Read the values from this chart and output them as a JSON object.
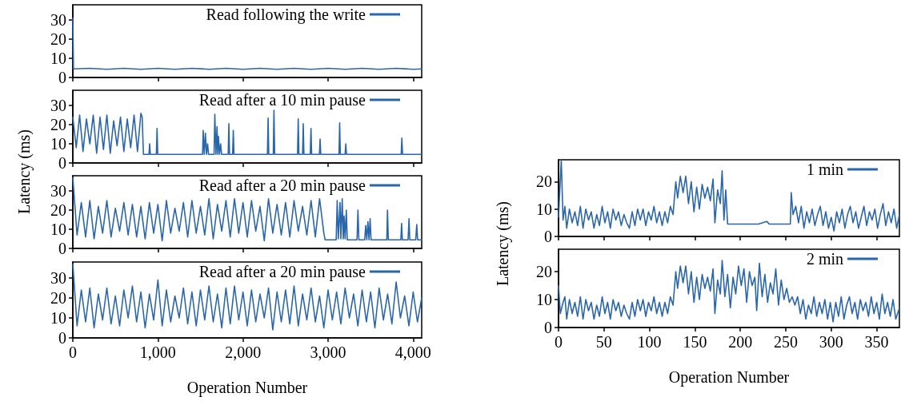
{
  "chart_data": [
    {
      "type": "line",
      "xlim": [
        0,
        4100
      ],
      "xticks": [
        0,
        1000,
        2000,
        3000,
        4000
      ],
      "ylim": [
        0,
        38
      ],
      "yticks": [
        0,
        10,
        20,
        30
      ],
      "tick_labels": "y",
      "grid": false,
      "legend": "top right",
      "marker": "none",
      "line_style": "solid",
      "x": [
        0,
        8,
        200,
        400,
        600,
        800,
        1000,
        1200,
        1400,
        1600,
        1800,
        2000,
        2200,
        2400,
        2600,
        2800,
        3000,
        3200,
        3400,
        3600,
        3800,
        4000,
        4100
      ],
      "series": [
        {
          "name": "Read following the write",
          "color": "#2a66ac",
          "values": [
            31,
            4.5,
            4.8,
            4.3,
            4.8,
            4.3,
            4.8,
            4.3,
            4.8,
            4.3,
            4.8,
            4.3,
            4.8,
            4.3,
            4.8,
            4.3,
            4.8,
            4.3,
            4.8,
            4.3,
            4.8,
            4.3,
            4.5
          ]
        }
      ]
    },
    {
      "type": "line",
      "ylabel": "Latency (ms)",
      "xlim": [
        0,
        4100
      ],
      "xticks": [
        0,
        1000,
        2000,
        3000,
        4000
      ],
      "ylim": [
        0,
        38
      ],
      "yticks": [
        0,
        10,
        20,
        30
      ],
      "tick_labels": "y",
      "grid": false,
      "legend": "top right",
      "marker": "none",
      "line_style": "solid",
      "x": [
        0,
        40,
        80,
        120,
        160,
        200,
        240,
        280,
        320,
        360,
        400,
        440,
        480,
        520,
        560,
        600,
        640,
        680,
        720,
        760,
        800,
        815,
        830,
        895,
        903,
        911,
        982,
        990,
        998,
        1525,
        1532,
        1545,
        1558,
        1571,
        1584,
        1595,
        1660,
        1669,
        1682,
        1695,
        1703,
        1711,
        1724,
        1737,
        1748,
        1826,
        1834,
        1842,
        1878,
        1886,
        1894,
        2287,
        2295,
        2303,
        2356,
        2364,
        2372,
        2641,
        2649,
        2657,
        2700,
        2708,
        2716,
        2791,
        2799,
        2807,
        2898,
        2906,
        2914,
        3128,
        3136,
        3144,
        3200,
        3208,
        3216,
        3859,
        3867,
        3875,
        4100
      ],
      "series": [
        {
          "name": "Read after a 10 min pause",
          "color": "#2a66ac",
          "values": [
            24,
            8,
            25,
            6,
            23,
            10,
            25,
            5,
            24,
            7,
            25,
            5,
            22,
            9,
            24,
            6,
            23,
            8,
            25,
            6,
            26,
            24,
            4.5,
            4.5,
            10,
            4.5,
            4.5,
            18,
            4.5,
            4.5,
            17,
            4.5,
            15.5,
            4.5,
            10,
            4.5,
            4.5,
            25.5,
            4.5,
            19,
            4.5,
            14,
            4.5,
            10,
            4.5,
            4.5,
            20.5,
            4.5,
            4.5,
            17,
            4.5,
            4.5,
            23.5,
            4.5,
            4.5,
            27.5,
            4.5,
            4.5,
            23,
            4.5,
            4.5,
            20.5,
            4.5,
            4.5,
            18,
            4.5,
            4.5,
            12.5,
            4.5,
            4.5,
            21,
            4.5,
            4.5,
            10,
            4.5,
            4.5,
            13,
            4.5,
            4.5
          ]
        }
      ]
    },
    {
      "type": "line",
      "xlim": [
        0,
        4100
      ],
      "xticks": [
        0,
        1000,
        2000,
        3000,
        4000
      ],
      "ylim": [
        0,
        38
      ],
      "yticks": [
        0,
        10,
        20,
        30
      ],
      "tick_labels": "y",
      "grid": false,
      "legend": "top right",
      "marker": "none",
      "line_style": "solid",
      "x": [
        0,
        50,
        100,
        150,
        200,
        250,
        300,
        350,
        400,
        450,
        500,
        550,
        600,
        650,
        700,
        750,
        800,
        850,
        900,
        950,
        1000,
        1050,
        1100,
        1150,
        1200,
        1250,
        1300,
        1350,
        1400,
        1450,
        1500,
        1550,
        1600,
        1650,
        1700,
        1750,
        1800,
        1850,
        1900,
        1950,
        2000,
        2050,
        2100,
        2150,
        2200,
        2250,
        2300,
        2350,
        2400,
        2450,
        2500,
        2550,
        2600,
        2650,
        2700,
        2750,
        2800,
        2850,
        2900,
        2950,
        2965,
        3095,
        3107,
        3120,
        3140,
        3150,
        3166,
        3178,
        3188,
        3200,
        3214,
        3225,
        3340,
        3351,
        3362,
        3430,
        3442,
        3455,
        3468,
        3481,
        3494,
        3505,
        3690,
        3698,
        3708,
        3855,
        3864,
        3873,
        3940,
        3951,
        3960,
        4030,
        4042,
        4052,
        4100
      ],
      "series": [
        {
          "name": "Read after a 20 min pause",
          "color": "#2a66ac",
          "values": [
            37,
            7,
            24,
            6,
            25,
            5,
            22,
            8,
            25,
            6,
            21,
            9,
            24,
            7,
            23,
            6,
            22,
            5,
            24,
            8,
            23,
            4,
            25,
            8,
            21,
            9,
            24,
            6,
            25,
            8,
            22,
            7,
            26,
            5,
            23,
            9,
            25,
            6,
            26,
            8,
            24,
            6,
            25,
            9,
            22,
            4,
            26,
            8,
            23,
            7,
            24,
            6,
            25,
            9,
            22,
            7,
            25,
            6,
            26,
            8,
            4.5,
            4.5,
            25,
            5,
            24,
            5,
            26,
            5,
            17,
            5,
            20,
            4.5,
            4.5,
            20,
            4.5,
            4.5,
            12,
            4.5,
            14,
            4.5,
            15.5,
            4.5,
            4.5,
            20,
            4.5,
            4.5,
            13,
            4.5,
            4.5,
            15.5,
            4.5,
            4.5,
            12.5,
            4.5,
            4.5
          ]
        }
      ]
    },
    {
      "type": "line",
      "xlabel": "Operation Number",
      "xlim": [
        0,
        4100
      ],
      "xticks": [
        0,
        {
          "value": 1000,
          "label": "1,000"
        },
        {
          "value": 2000,
          "label": "2,000"
        },
        {
          "value": 3000,
          "label": "3,000"
        },
        {
          "value": 4000,
          "label": "4,000"
        }
      ],
      "ylim": [
        0,
        38
      ],
      "yticks": [
        0,
        10,
        20,
        30
      ],
      "grid": false,
      "legend": "top right",
      "marker": "none",
      "line_style": "solid",
      "x": [
        0,
        50,
        100,
        150,
        200,
        250,
        300,
        350,
        400,
        450,
        500,
        550,
        600,
        650,
        700,
        750,
        800,
        850,
        900,
        950,
        1000,
        1050,
        1100,
        1150,
        1200,
        1250,
        1300,
        1350,
        1400,
        1450,
        1500,
        1550,
        1600,
        1650,
        1700,
        1750,
        1800,
        1850,
        1900,
        1950,
        2000,
        2050,
        2100,
        2150,
        2200,
        2250,
        2300,
        2350,
        2400,
        2450,
        2500,
        2550,
        2600,
        2650,
        2700,
        2750,
        2800,
        2850,
        2900,
        2950,
        3000,
        3050,
        3100,
        3150,
        3200,
        3250,
        3300,
        3350,
        3400,
        3450,
        3500,
        3550,
        3600,
        3650,
        3700,
        3750,
        3800,
        3850,
        3900,
        3950,
        4000,
        4050,
        4100
      ],
      "series": [
        {
          "name": "Read after a 20 min pause",
          "color": "#2a66ac",
          "values": [
            37,
            6,
            24,
            8,
            25,
            5,
            22,
            9,
            25,
            7,
            21,
            6,
            24,
            10,
            26,
            8,
            23,
            5,
            22,
            9,
            29,
            6,
            24,
            8,
            21,
            10,
            25,
            7,
            23,
            6,
            24,
            9,
            26,
            8,
            22,
            5,
            25,
            7,
            26,
            9,
            23,
            6,
            24,
            8,
            22,
            10,
            25,
            4,
            23,
            8,
            24,
            7,
            26,
            6,
            22,
            9,
            25,
            8,
            21,
            5,
            24,
            9,
            23,
            7,
            25,
            10,
            22,
            6,
            24,
            8,
            23,
            5,
            25,
            9,
            22,
            7,
            28,
            10,
            21,
            6,
            23,
            8,
            20
          ]
        }
      ]
    },
    {
      "type": "line",
      "ylabel": "Latency (ms)",
      "xlim": [
        0,
        375
      ],
      "xticks": [
        0,
        50,
        100,
        150,
        200,
        250,
        300,
        350
      ],
      "ylim": [
        0,
        28
      ],
      "yticks": [
        0,
        10,
        20
      ],
      "tick_labels": "y",
      "grid": false,
      "legend": "top right",
      "marker": "none",
      "line_style": "solid",
      "x": [
        0,
        3,
        5,
        7,
        9,
        12,
        15,
        18,
        21,
        24,
        27,
        30,
        33,
        36,
        39,
        42,
        45,
        48,
        51,
        54,
        57,
        60,
        63,
        66,
        69,
        72,
        75,
        78,
        81,
        84,
        87,
        90,
        93,
        96,
        99,
        102,
        105,
        108,
        111,
        114,
        117,
        120,
        123,
        126,
        129,
        131,
        134,
        137,
        140,
        143,
        146,
        149,
        152,
        155,
        158,
        161,
        164,
        167,
        170,
        172,
        175,
        178,
        180,
        182,
        184,
        186,
        200,
        220,
        229,
        232,
        250,
        255,
        256,
        258,
        261,
        264,
        267,
        270,
        273,
        276,
        279,
        282,
        285,
        288,
        291,
        294,
        297,
        300,
        303,
        306,
        309,
        312,
        315,
        318,
        321,
        324,
        327,
        330,
        333,
        336,
        339,
        342,
        345,
        348,
        351,
        354,
        357,
        360,
        363,
        366,
        369,
        372,
        375
      ],
      "series": [
        {
          "name": "1 min",
          "color": "#2a66ac",
          "values": [
            7,
            28,
            6,
            11,
            3,
            10,
            5,
            9,
            4,
            11,
            3,
            10,
            6,
            9,
            3,
            8,
            4,
            11,
            5,
            9,
            3,
            10,
            6,
            9,
            4,
            8,
            5,
            3,
            9,
            4,
            10,
            6,
            10,
            4,
            9,
            6,
            11,
            5,
            9,
            4,
            9,
            5,
            11,
            8,
            20,
            14,
            22,
            16,
            22,
            12,
            20,
            9,
            18,
            10,
            19,
            14,
            18,
            13,
            21,
            5,
            17,
            12,
            24,
            6,
            17,
            4.5,
            4.5,
            4.5,
            5.5,
            4.5,
            4.5,
            4.5,
            16,
            8,
            11,
            5,
            11,
            3,
            9,
            5,
            10,
            4,
            8,
            11,
            4,
            9,
            3,
            7,
            2,
            9,
            5,
            10,
            3,
            8,
            11,
            5,
            9,
            3,
            7,
            11,
            4,
            9,
            6,
            10,
            3,
            8,
            12,
            4,
            9,
            5,
            10,
            3,
            8
          ]
        }
      ]
    },
    {
      "type": "line",
      "xlabel": "Operation Number",
      "xlim": [
        0,
        375
      ],
      "xticks": [
        0,
        50,
        100,
        150,
        200,
        250,
        300,
        350
      ],
      "ylim": [
        0,
        28
      ],
      "yticks": [
        0,
        10,
        20
      ],
      "grid": false,
      "legend": "top right",
      "marker": "none",
      "line_style": "solid",
      "x": [
        0,
        2,
        5,
        7,
        9,
        12,
        15,
        18,
        21,
        24,
        27,
        30,
        33,
        36,
        39,
        42,
        45,
        48,
        51,
        54,
        57,
        60,
        63,
        66,
        69,
        72,
        75,
        78,
        81,
        84,
        87,
        90,
        93,
        96,
        99,
        102,
        105,
        108,
        111,
        114,
        117,
        120,
        123,
        126,
        129,
        131,
        134,
        137,
        140,
        143,
        146,
        149,
        152,
        155,
        158,
        161,
        164,
        167,
        170,
        172,
        175,
        178,
        180,
        183,
        186,
        189,
        192,
        195,
        198,
        201,
        204,
        207,
        210,
        213,
        216,
        218,
        221,
        224,
        227,
        230,
        233,
        236,
        239,
        242,
        245,
        248,
        251,
        254,
        257,
        260,
        263,
        266,
        269,
        272,
        275,
        278,
        281,
        284,
        287,
        290,
        293,
        296,
        299,
        302,
        305,
        308,
        311,
        314,
        317,
        320,
        323,
        326,
        329,
        332,
        335,
        338,
        341,
        344,
        347,
        350,
        353,
        356,
        359,
        362,
        365,
        368,
        371,
        375
      ],
      "series": [
        {
          "name": "2 min",
          "color": "#2a66ac",
          "values": [
            15,
            5,
            9,
            11,
            3,
            10,
            5,
            9,
            4,
            11,
            3,
            10,
            6,
            9,
            3,
            8,
            4,
            11,
            5,
            9,
            3,
            10,
            6,
            9,
            4,
            8,
            5,
            3,
            9,
            4,
            10,
            6,
            10,
            4,
            9,
            6,
            11,
            5,
            9,
            4,
            9,
            5,
            11,
            8,
            20,
            14,
            22,
            16,
            22,
            12,
            20,
            9,
            18,
            10,
            19,
            14,
            18,
            13,
            21,
            5,
            17,
            12,
            24,
            11,
            19,
            7,
            18,
            12,
            22,
            15,
            21,
            9,
            20,
            15,
            18,
            6,
            23,
            11,
            19,
            9,
            16,
            12,
            21,
            8,
            17,
            10,
            14,
            9,
            11,
            8,
            11,
            5,
            10,
            3,
            8,
            5,
            11,
            4,
            9,
            5,
            10,
            3,
            9,
            2,
            9,
            4,
            11,
            3,
            8,
            11,
            5,
            9,
            3,
            10,
            6,
            9,
            4,
            11,
            5,
            9,
            3,
            12,
            5,
            9,
            4,
            10,
            3,
            7
          ]
        }
      ]
    }
  ]
}
